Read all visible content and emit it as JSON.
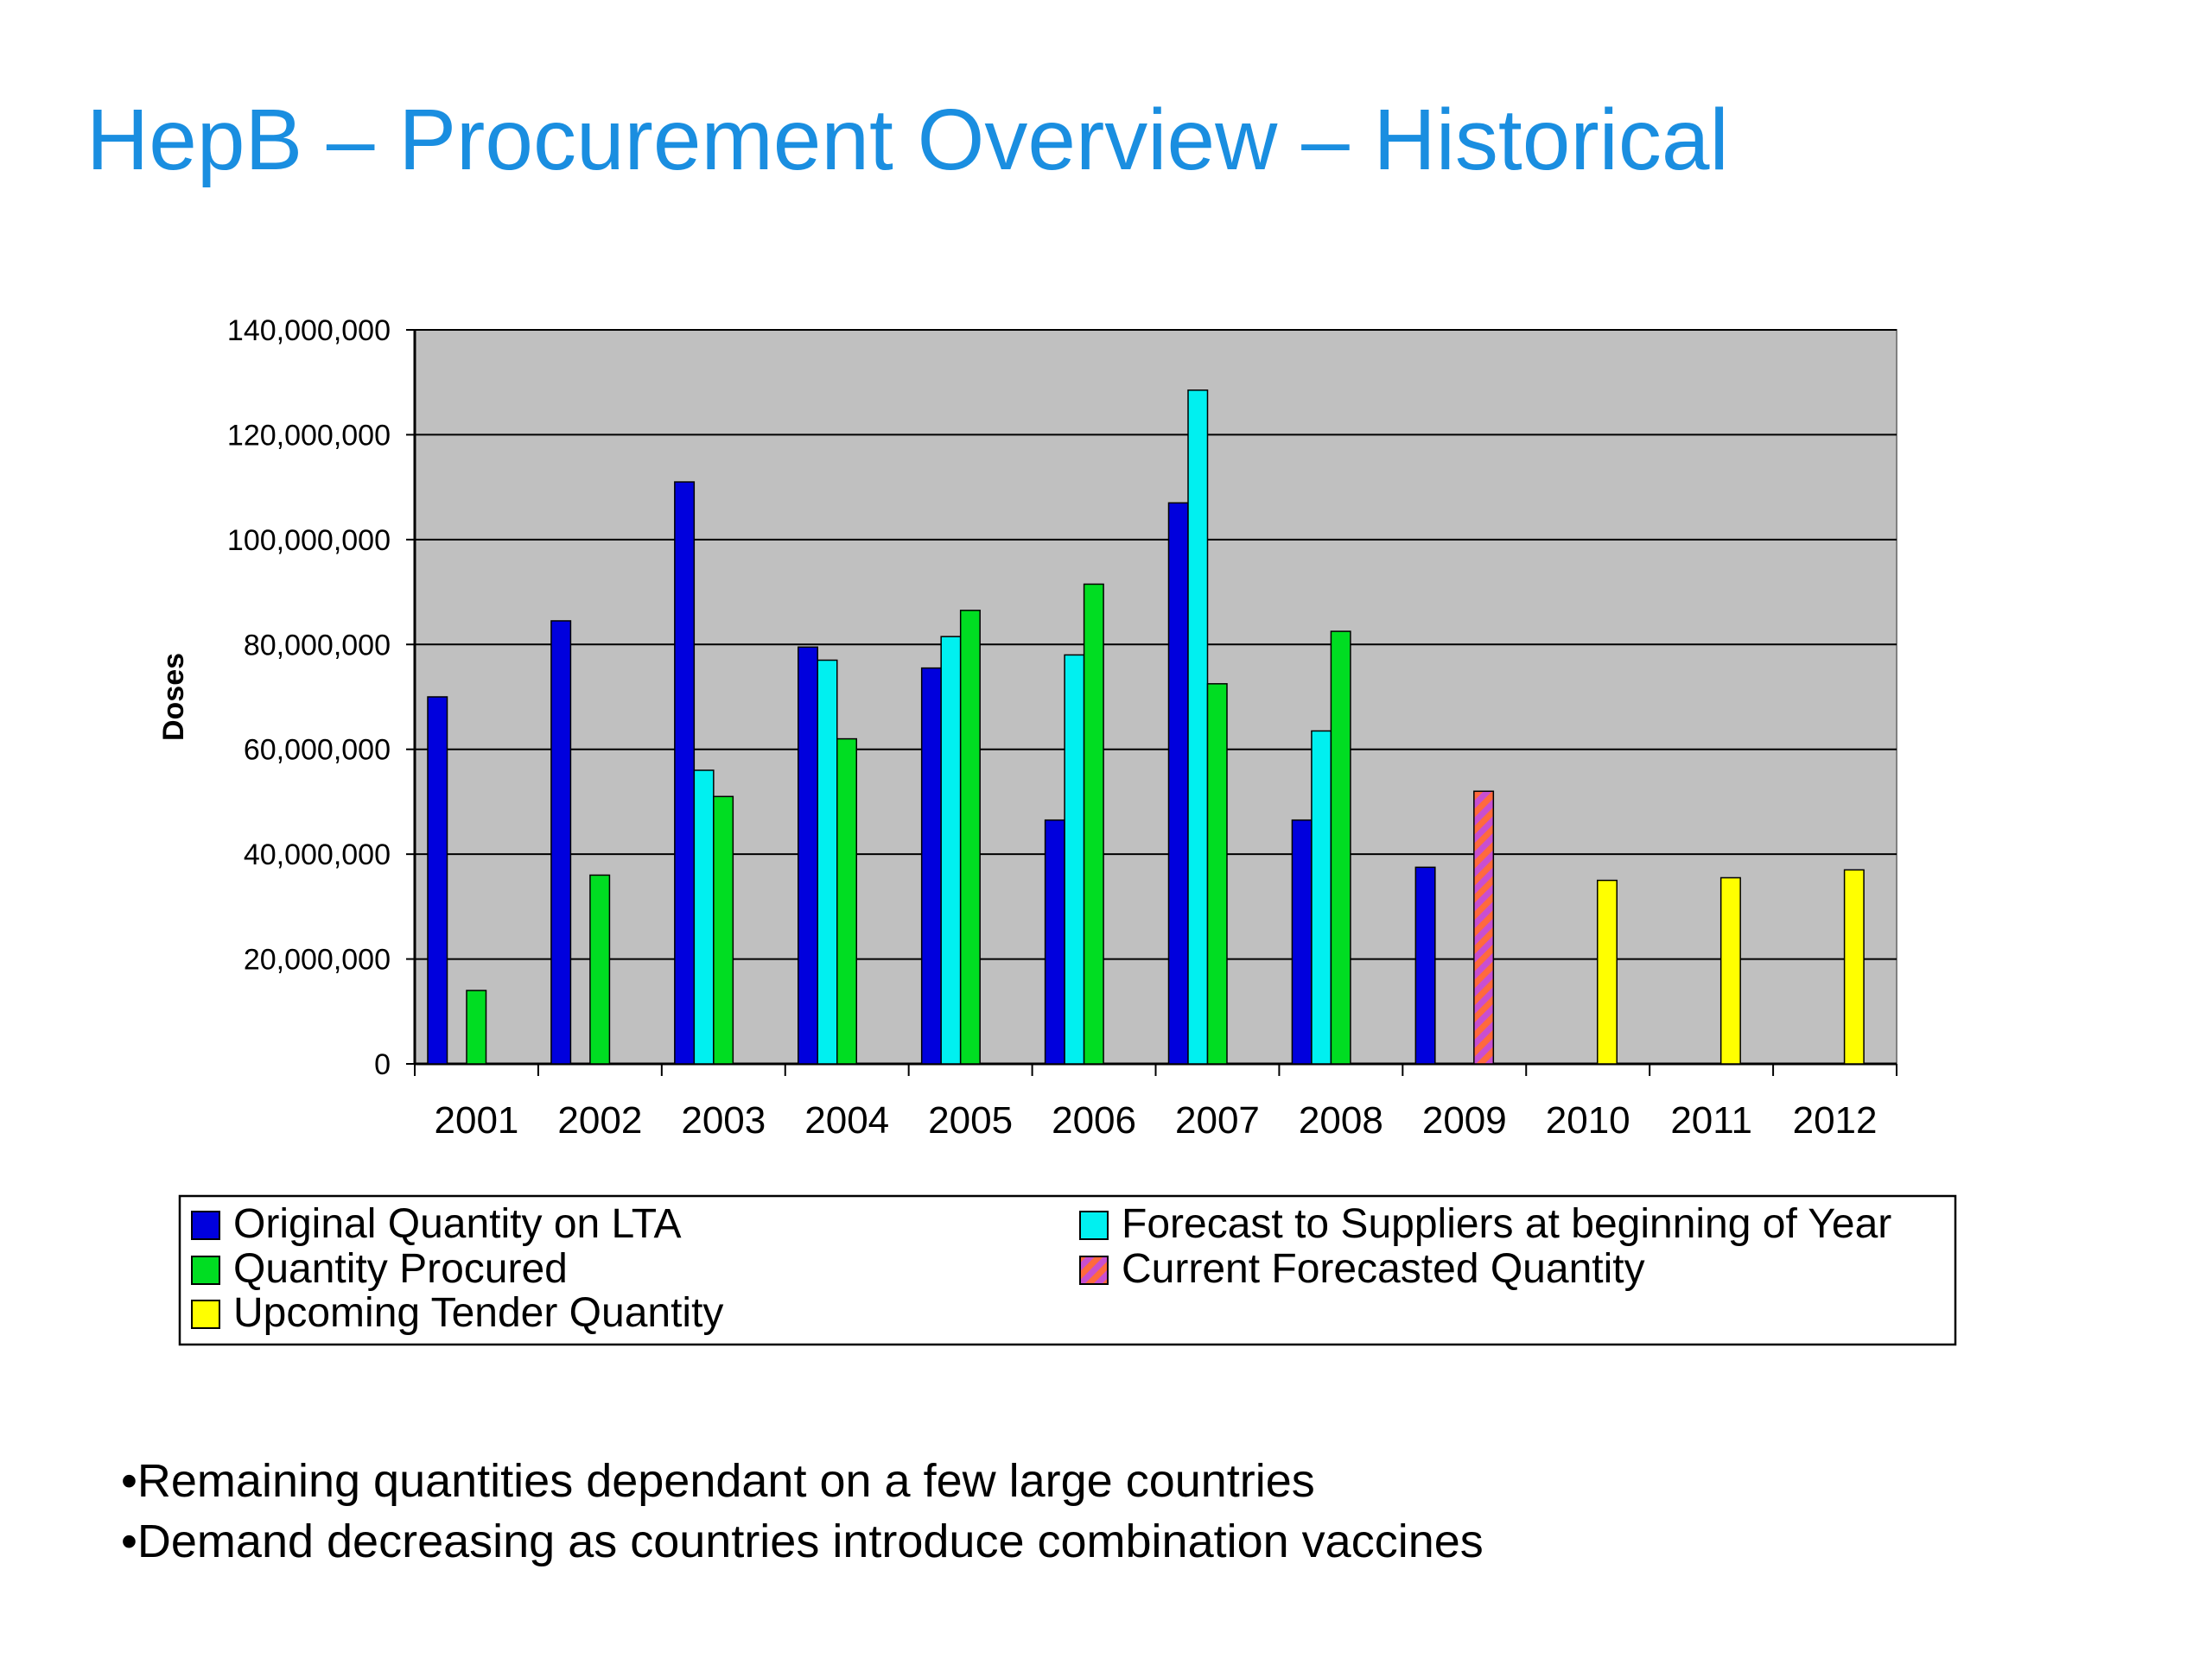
{
  "slide": {
    "title": "HepB – Procurement Overview – Historical",
    "bullets": [
      "•Remaining quantities dependant on a few large countries",
      "•Demand decreasing as countries introduce combination vaccines"
    ]
  },
  "chart_data": {
    "type": "bar",
    "title": "",
    "xlabel": "",
    "ylabel": "Doses",
    "ylim": [
      0,
      140000000
    ],
    "yticks": [
      0,
      20000000,
      40000000,
      60000000,
      80000000,
      100000000,
      120000000,
      140000000
    ],
    "ytick_labels": [
      "0",
      "20,000,000",
      "40,000,000",
      "60,000,000",
      "80,000,000",
      "100,000,000",
      "120,000,000",
      "140,000,000"
    ],
    "grid": true,
    "background": "#c0c0c0",
    "legend_position": "bottom",
    "categories": [
      "2001",
      "2002",
      "2003",
      "2004",
      "2005",
      "2006",
      "2007",
      "2008",
      "2009",
      "2010",
      "2011",
      "2012"
    ],
    "series": [
      {
        "name": "Original Quantity on LTA",
        "color": "#0000dd",
        "values": [
          70000000,
          84500000,
          111000000,
          79500000,
          75500000,
          46500000,
          107000000,
          46500000,
          37500000,
          null,
          null,
          null
        ]
      },
      {
        "name": "Forecast to Suppliers at beginning of Year",
        "color": "#00f0f0",
        "values": [
          null,
          null,
          56000000,
          77000000,
          81500000,
          78000000,
          128500000,
          63500000,
          null,
          null,
          null,
          null
        ]
      },
      {
        "name": "Quantity Procured",
        "color": "#00dd22",
        "values": [
          14000000,
          36000000,
          51000000,
          62000000,
          86500000,
          91500000,
          72500000,
          82500000,
          null,
          null,
          null,
          null
        ]
      },
      {
        "name": "Current Forecasted Quantity",
        "color": "#ff5a7a",
        "pattern": "hatched-orange-purple",
        "values": [
          null,
          null,
          null,
          null,
          null,
          null,
          null,
          null,
          52000000,
          null,
          null,
          null
        ]
      },
      {
        "name": "Upcoming Tender Quantity",
        "color": "#ffff00",
        "values": [
          null,
          null,
          null,
          null,
          null,
          null,
          null,
          null,
          null,
          35000000,
          35500000,
          37000000
        ]
      }
    ],
    "legend_order": [
      "Original Quantity on LTA",
      "Forecast to Suppliers at beginning of Year",
      "Quantity Procured",
      "Current Forecasted Quantity",
      "Upcoming Tender Quantity"
    ]
  }
}
